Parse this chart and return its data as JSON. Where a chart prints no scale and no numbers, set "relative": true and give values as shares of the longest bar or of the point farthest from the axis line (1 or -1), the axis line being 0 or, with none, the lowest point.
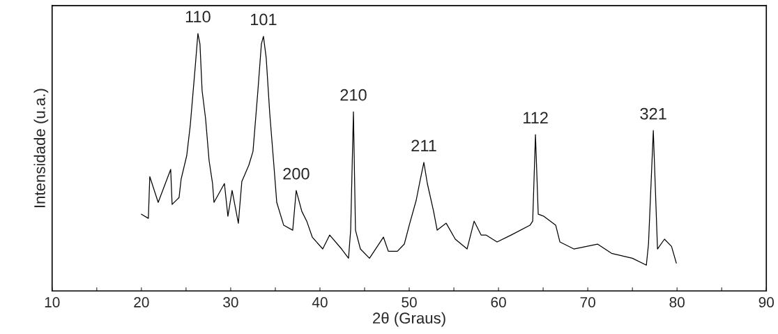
{
  "chart_data": {
    "type": "line",
    "xlabel": "2θ (Graus)",
    "ylabel": "Intensidade (u.a.)",
    "relative": true,
    "tick_labels": "x",
    "grid": false,
    "legend": false,
    "xlim": [
      10,
      90
    ],
    "xticks": [
      10,
      {
        "value": 15,
        "label": null
      },
      20,
      {
        "value": 25,
        "label": null
      },
      30,
      {
        "value": 35,
        "label": null
      },
      40,
      {
        "value": 45,
        "label": null
      },
      50,
      {
        "value": 55,
        "label": null
      },
      60,
      {
        "value": 65,
        "label": null
      },
      70,
      {
        "value": 75,
        "label": null
      },
      80,
      {
        "value": 85,
        "label": null
      },
      90
    ],
    "series": [
      {
        "color": "#000000",
        "x": [
          20.0,
          20.78,
          20.94,
          21.88,
          23.28,
          23.44,
          24.22,
          24.45,
          25.08,
          25.47,
          26.02,
          26.33,
          26.56,
          26.8,
          27.19,
          27.58,
          27.97,
          28.13,
          29.3,
          29.69,
          30.16,
          30.86,
          31.25,
          32.03,
          32.5,
          33.05,
          33.44,
          33.67,
          33.98,
          34.38,
          34.84,
          35.16,
          35.94,
          36.95,
          37.34,
          37.97,
          38.52,
          39.14,
          40.31,
          41.09,
          42.42,
          43.2,
          43.44,
          43.75,
          43.98,
          44.53,
          45.55,
          47.11,
          47.66,
          48.67,
          49.45,
          50.0,
          50.78,
          51.25,
          51.64,
          52.03,
          52.73,
          53.13,
          54.14,
          55.16,
          56.48,
          57.27,
          58.05,
          58.59,
          59.84,
          61.41,
          63.52,
          63.83,
          64.14,
          64.45,
          65.08,
          66.41,
          66.88,
          68.44,
          71.09,
          72.66,
          75.0,
          76.56,
          76.8,
          77.34,
          77.81,
          78.59,
          79.38,
          79.92
        ],
        "values": [
          0.298,
          0.282,
          0.444,
          0.344,
          0.472,
          0.336,
          0.363,
          0.434,
          0.526,
          0.642,
          0.867,
          1.0,
          0.959,
          0.778,
          0.669,
          0.507,
          0.417,
          0.344,
          0.417,
          0.29,
          0.39,
          0.263,
          0.425,
          0.488,
          0.542,
          0.778,
          0.959,
          0.989,
          0.905,
          0.688,
          0.488,
          0.344,
          0.255,
          0.236,
          0.39,
          0.309,
          0.271,
          0.209,
          0.163,
          0.217,
          0.163,
          0.127,
          0.236,
          0.696,
          0.236,
          0.163,
          0.127,
          0.209,
          0.154,
          0.154,
          0.182,
          0.255,
          0.352,
          0.434,
          0.499,
          0.417,
          0.309,
          0.236,
          0.263,
          0.201,
          0.163,
          0.271,
          0.217,
          0.217,
          0.19,
          0.217,
          0.255,
          0.271,
          0.607,
          0.298,
          0.29,
          0.255,
          0.19,
          0.163,
          0.182,
          0.146,
          0.127,
          0.1,
          0.182,
          0.623,
          0.163,
          0.201,
          0.173,
          0.108
        ]
      }
    ],
    "annotations": [
      {
        "text": "110",
        "x": 26.33,
        "y": 1.0
      },
      {
        "text": "101",
        "x": 33.67,
        "y": 0.989
      },
      {
        "text": "200",
        "x": 37.34,
        "y": 0.39
      },
      {
        "text": "210",
        "x": 43.75,
        "y": 0.696
      },
      {
        "text": "211",
        "x": 51.64,
        "y": 0.499
      },
      {
        "text": "112",
        "x": 64.14,
        "y": 0.607
      },
      {
        "text": "321",
        "x": 77.34,
        "y": 0.623
      }
    ]
  }
}
